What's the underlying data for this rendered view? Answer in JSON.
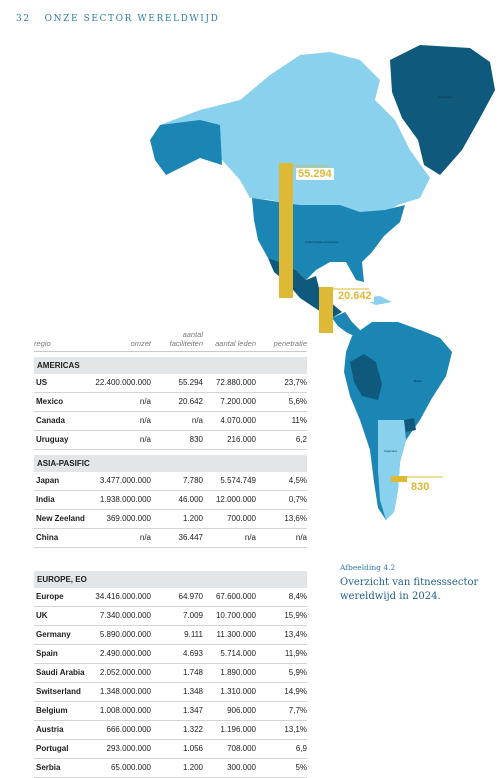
{
  "header": {
    "page_number": "32",
    "section_title": "ONZE SECTOR WERELDWIJD"
  },
  "colors": {
    "land_light": "#8ad1ee",
    "land_mid": "#1b86b3",
    "land_dark": "#0f5a7c",
    "highlight_bar": "#ddb935",
    "accent_blue": "#2d7da6"
  },
  "map_markers": [
    {
      "value": "55.294"
    },
    {
      "value": "20.642"
    },
    {
      "value": "830"
    }
  ],
  "table": {
    "columns": [
      "regio",
      "omzet",
      "aantal faciliteiten",
      "aantal leden",
      "penetratie"
    ],
    "sections": [
      {
        "name": "AMERICAS",
        "rows": [
          [
            "US",
            "22.400.000.000",
            "55.294",
            "72.880.000",
            "23,7%"
          ],
          [
            "Mexico",
            "n/a",
            "20.642",
            "7.200.000",
            "5,6%"
          ],
          [
            "Canada",
            "n/a",
            "n/a",
            "4.070.000",
            "11%"
          ],
          [
            "Uruguay",
            "n/a",
            "830",
            "216.000",
            "6,2"
          ]
        ]
      },
      {
        "name": "ASIA-PASIFIC",
        "rows": [
          [
            "Japan",
            "3.477.000.000",
            "7.780",
            "5.574.749",
            "4,5%"
          ],
          [
            "India",
            "1.938.000.000",
            "46.000",
            "12.000.000",
            "0,7%"
          ],
          [
            "New Zeeland",
            "369.000.000",
            "1.200",
            "700.000",
            "13,6%"
          ],
          [
            "China",
            "n/a",
            "36.447",
            "n/a",
            "n/a"
          ]
        ]
      },
      {
        "name": "EUROPE, EO",
        "rows": [
          [
            "Europe",
            "34.416.000.000",
            "64.970",
            "67.600.000",
            "8,4%"
          ],
          [
            "UK",
            "7.340.000.000",
            "7.009",
            "10.700.000",
            "15,9%"
          ],
          [
            "Germany",
            "5.890.000.000",
            "9.111",
            "11.300.000",
            "13,4%"
          ],
          [
            "Spain",
            "2.490.000.000",
            "4.693",
            "5.714.000",
            "11,9%"
          ],
          [
            "Saudi Arabia",
            "2.052.000.000",
            "1.748",
            "1.890.000",
            "5,9%"
          ],
          [
            "Switserland",
            "1.348.000.000",
            "1.348",
            "1.310.000",
            "14,9%"
          ],
          [
            "Belgium",
            "1.008.000.000",
            "1.347",
            "906.000",
            "7,7%"
          ],
          [
            "Austria",
            "666.000.000",
            "1.322",
            "1.196.000",
            "13,1%"
          ],
          [
            "Portugal",
            "293.000.000",
            "1.056",
            "708.000",
            "6,9"
          ],
          [
            "Serbia",
            "65.000.000",
            "1.200",
            "300.000",
            "5%"
          ]
        ]
      }
    ]
  },
  "caption": {
    "label": "Afbeelding 4.2",
    "text": "Overzicht van fitnesssector wereldwijd in 2024."
  }
}
